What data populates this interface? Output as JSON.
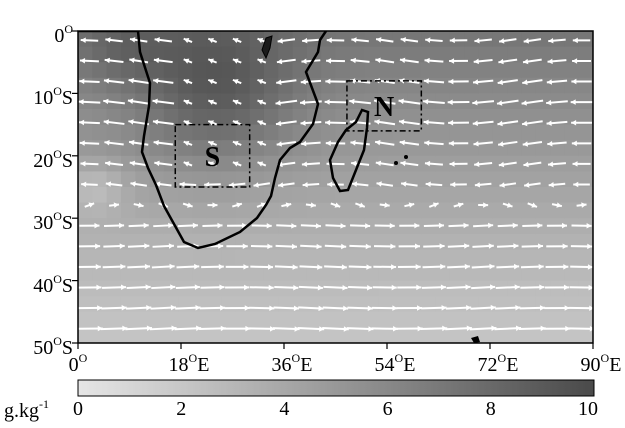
{
  "map": {
    "extent": {
      "lon": [
        0,
        90
      ],
      "lat": [
        -50,
        0
      ]
    },
    "y_ticks": [
      {
        "value": 0,
        "num": "0",
        "deg": "O",
        "hemi": ""
      },
      {
        "value": -10,
        "num": "10",
        "deg": "O",
        "hemi": "S"
      },
      {
        "value": -20,
        "num": "20",
        "deg": "O",
        "hemi": "S"
      },
      {
        "value": -30,
        "num": "30",
        "deg": "O",
        "hemi": "S"
      },
      {
        "value": -40,
        "num": "40",
        "deg": "O",
        "hemi": "S"
      },
      {
        "value": -50,
        "num": "50",
        "deg": "O",
        "hemi": "S"
      }
    ],
    "x_ticks": [
      {
        "value": 0,
        "num": "0",
        "deg": "O",
        "hemi": ""
      },
      {
        "value": 18,
        "num": "18",
        "deg": "O",
        "hemi": "E"
      },
      {
        "value": 36,
        "num": "36",
        "deg": "O",
        "hemi": "E"
      },
      {
        "value": 54,
        "num": "54",
        "deg": "O",
        "hemi": "E"
      },
      {
        "value": 72,
        "num": "72",
        "deg": "O",
        "hemi": "E"
      },
      {
        "value": 90,
        "num": "90",
        "deg": "O",
        "hemi": "E"
      }
    ],
    "regions": [
      {
        "label": "S",
        "lon": [
          17,
          30
        ],
        "lat": [
          -25,
          -15
        ]
      },
      {
        "label": "N",
        "lon": [
          47,
          60
        ],
        "lat": [
          -16,
          -8
        ]
      }
    ],
    "field_description": "specific humidity shading with wind vectors"
  },
  "colorbar": {
    "unit_base": "g.kg",
    "unit_exp": "-1",
    "range": [
      0,
      10
    ],
    "ticks": [
      "0",
      "2",
      "4",
      "6",
      "8",
      "10"
    ],
    "color_low": "#e6e6e6",
    "color_high": "#4a4a4a"
  }
}
